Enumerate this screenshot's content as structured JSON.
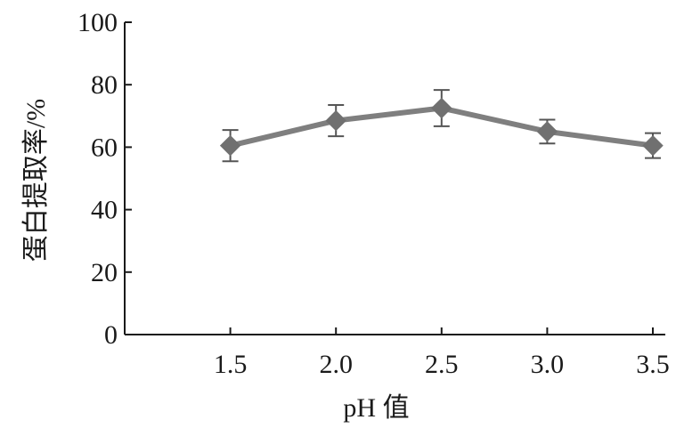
{
  "chart_data": {
    "type": "line",
    "title": "",
    "xlabel": "pH 值",
    "ylabel": "蛋白提取率/%",
    "x": [
      1.5,
      2.0,
      2.5,
      3.0,
      3.5
    ],
    "x_tick_labels": [
      "1.5",
      "2.0",
      "2.5",
      "3.0",
      "3.5"
    ],
    "y_tick_labels": [
      "0",
      "20",
      "40",
      "60",
      "80",
      "100"
    ],
    "xlim": [
      1.0,
      3.5
    ],
    "ylim": [
      0,
      100
    ],
    "grid": false,
    "series": [
      {
        "values": [
          60.5,
          68.5,
          72.5,
          65.0,
          60.5
        ],
        "error": [
          5.0,
          5.0,
          5.8,
          3.8,
          4.0
        ],
        "marker": "diamond",
        "color": "#7f7f7f"
      }
    ]
  }
}
